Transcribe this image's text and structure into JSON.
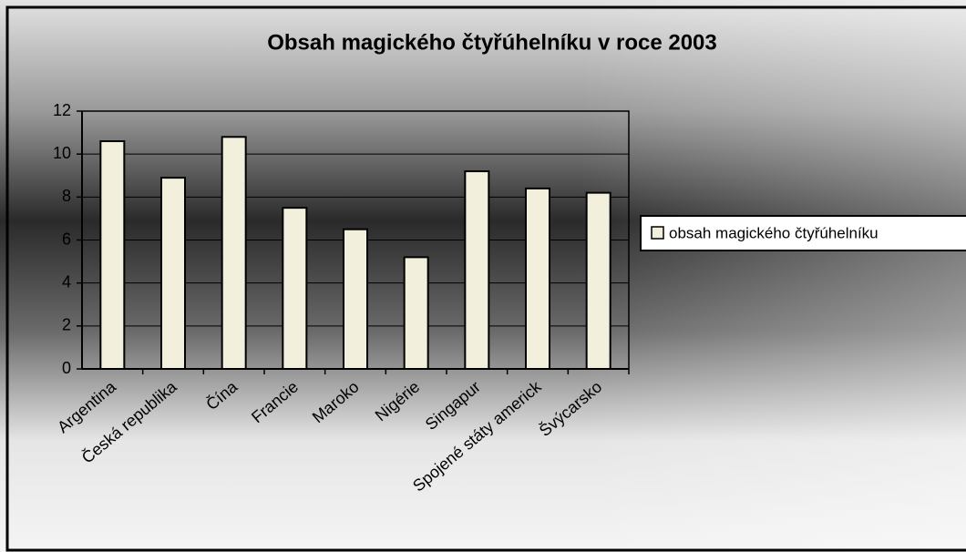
{
  "chart_data": {
    "type": "bar",
    "title": "Obsah magického čtyřúhelníku v roce 2003",
    "categories": [
      "Argentina",
      "Česká republika",
      "Čína",
      "Francie",
      "Maroko",
      "Nigérie",
      "Singapur",
      "Spojené státy americk",
      "Švýcarsko"
    ],
    "series": [
      {
        "name": "obsah magického čtyřúhelníku",
        "color": "#f2f0dc",
        "values": [
          10.6,
          8.9,
          10.8,
          7.5,
          6.5,
          5.2,
          9.2,
          8.4,
          8.2
        ]
      }
    ],
    "ylim": [
      0,
      12
    ],
    "yticks": [
      0,
      2,
      4,
      6,
      8,
      10,
      12
    ],
    "grid": true,
    "legend": "right"
  }
}
